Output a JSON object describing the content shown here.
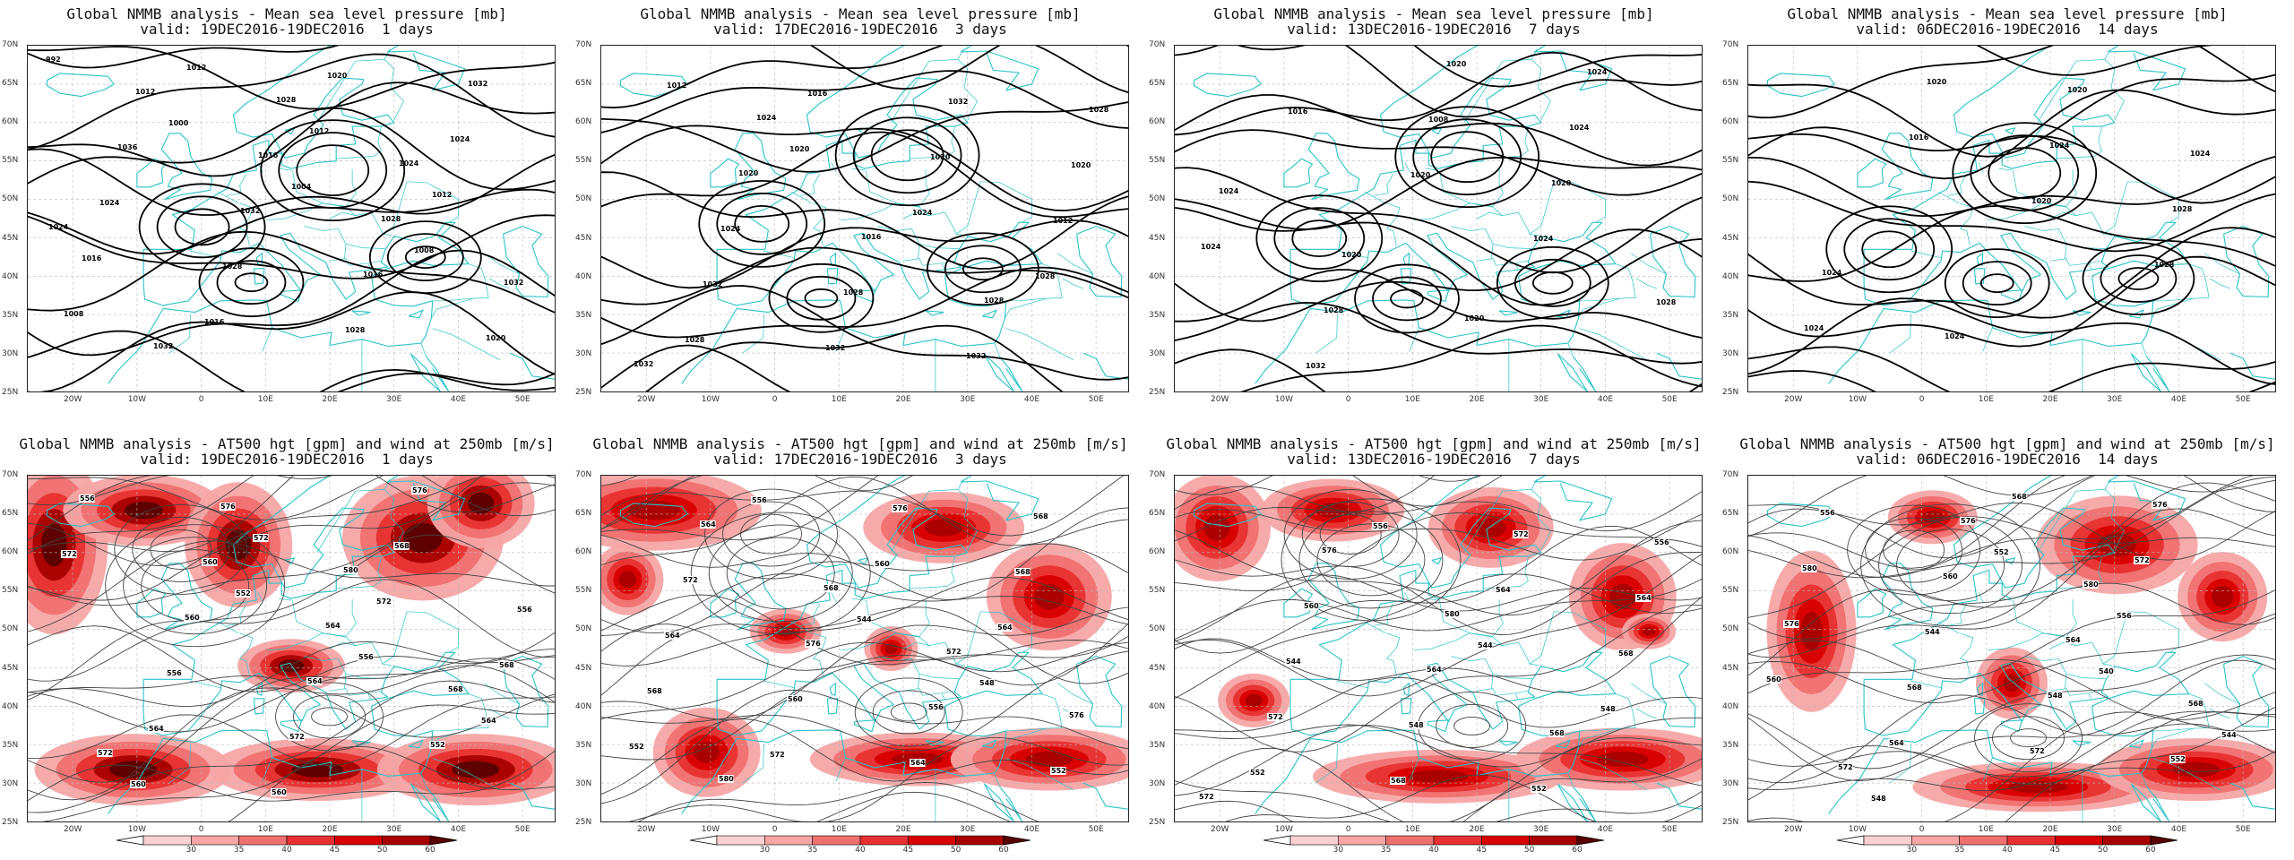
{
  "panels": [
    {
      "id": "p0",
      "kind": "mslp",
      "title": "Global NMMB analysis - Mean sea level pressure [mb]",
      "valid": "valid: 19DEC2016-19DEC2016  1 days",
      "labels": [
        "992",
        "1000",
        "1004",
        "1008",
        "1008",
        "1012",
        "1012",
        "1012",
        "1016",
        "1016",
        "1020",
        "1024",
        "1024",
        "1028",
        "1028",
        "1032",
        "1036",
        "1032",
        "1016",
        "1020",
        "1012",
        "1016",
        "1028",
        "1032",
        "1032",
        "1028",
        "1024",
        "1024"
      ]
    },
    {
      "id": "p1",
      "kind": "mslp",
      "title": "Global NMMB analysis - Mean sea level pressure [mb]",
      "valid": "valid: 17DEC2016-19DEC2016  3 days",
      "labels": [
        "1012",
        "1020",
        "1024",
        "1028",
        "1028",
        "1016",
        "1020",
        "1012",
        "1032",
        "1032",
        "1032",
        "1020",
        "1024",
        "1028",
        "1032",
        "1028",
        "1020",
        "1016",
        "1028",
        "1032",
        "1024"
      ]
    },
    {
      "id": "p2",
      "kind": "mslp",
      "title": "Global NMMB analysis - Mean sea level pressure [mb]",
      "valid": "valid: 13DEC2016-19DEC2016  7 days",
      "labels": [
        "1016",
        "1020",
        "1024",
        "1028",
        "1032",
        "1008",
        "1020",
        "1024",
        "1028",
        "1020",
        "1024",
        "1024",
        "1020",
        "1020",
        "1024"
      ]
    },
    {
      "id": "p3",
      "kind": "mslp",
      "title": "Global NMMB analysis - Mean sea level pressure [mb]",
      "valid": "valid: 06DEC2016-19DEC2016  14 days",
      "labels": [
        "1016",
        "1020",
        "1028",
        "1024",
        "1020",
        "1024",
        "1028",
        "1024",
        "1024",
        "1020",
        "1024"
      ]
    },
    {
      "id": "p4",
      "kind": "z500",
      "title": "Global NMMB analysis - AT500 hgt [gpm] and wind at 250mb [m/s]",
      "valid": "valid: 19DEC2016-19DEC2016  1 days",
      "labels": [
        "552",
        "556",
        "564",
        "560",
        "572",
        "572",
        "568",
        "564",
        "560",
        "568",
        "556",
        "556",
        "572",
        "576",
        "572",
        "560",
        "564",
        "552",
        "556",
        "560",
        "564",
        "568",
        "572",
        "576",
        "580"
      ]
    },
    {
      "id": "p5",
      "kind": "z500",
      "title": "Global NMMB analysis - AT500 hgt [gpm] and wind at 250mb [m/s]",
      "valid": "valid: 17DEC2016-19DEC2016  3 days",
      "labels": [
        "544",
        "548",
        "552",
        "556",
        "560",
        "564",
        "568",
        "572",
        "576",
        "568",
        "564",
        "560",
        "564",
        "568",
        "572",
        "576",
        "556",
        "552",
        "564",
        "568",
        "572",
        "576",
        "580"
      ]
    },
    {
      "id": "p6",
      "kind": "z500",
      "title": "Global NMMB analysis - AT500 hgt [gpm] and wind at 250mb [m/s]",
      "valid": "valid: 13DEC2016-19DEC2016  7 days",
      "labels": [
        "544",
        "548",
        "552",
        "556",
        "564",
        "568",
        "572",
        "568",
        "572",
        "564",
        "544",
        "548",
        "552",
        "556",
        "560",
        "564",
        "568",
        "572",
        "576",
        "580"
      ]
    },
    {
      "id": "p7",
      "kind": "z500",
      "title": "Global NMMB analysis - AT500 hgt [gpm] and wind at 250mb [m/s]",
      "valid": "valid: 06DEC2016-19DEC2016  14 days",
      "labels": [
        "540",
        "544",
        "548",
        "552",
        "556",
        "560",
        "564",
        "568",
        "572",
        "576",
        "568",
        "572",
        "576",
        "580",
        "544",
        "548",
        "552",
        "556",
        "560",
        "564",
        "568",
        "572",
        "576",
        "580"
      ]
    }
  ],
  "lat_ticks": [
    "70N",
    "65N",
    "60N",
    "55N",
    "50N",
    "45N",
    "40N",
    "35N",
    "30N",
    "25N"
  ],
  "lon_ticks": [
    "20W",
    "10W",
    "0",
    "10E",
    "20E",
    "30E",
    "40E",
    "50E"
  ],
  "colorbar": {
    "ticks": [
      "30",
      "35",
      "40",
      "45",
      "50",
      "60"
    ],
    "colors": [
      "#ffffff",
      "#fbd0d0",
      "#f7a5a5",
      "#f07070",
      "#e83030",
      "#d80000",
      "#a80000",
      "#5a0000"
    ]
  },
  "colors": {
    "coast": "#29c3c8",
    "contour_bold": "#000000",
    "contour_thin": "#444444",
    "grid": "#b8b8b8"
  }
}
